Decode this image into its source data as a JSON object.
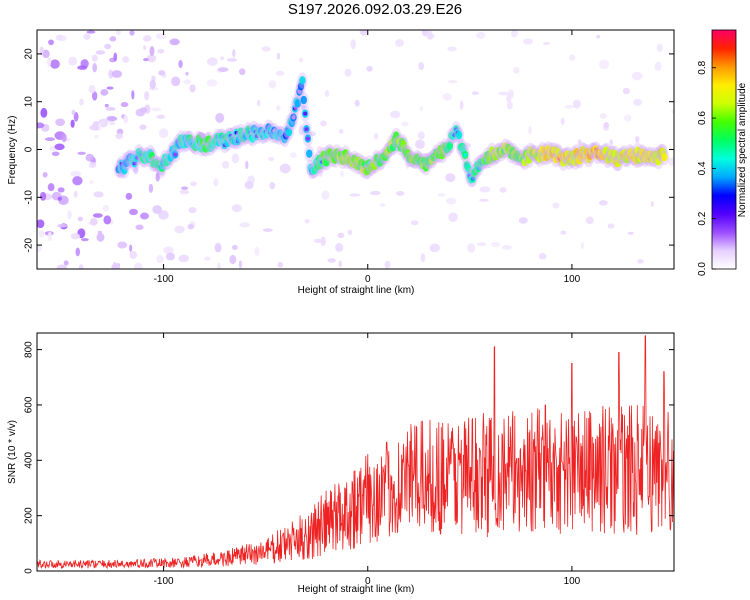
{
  "title": "S197.2026.092.03.29.E26",
  "chart_data": [
    {
      "type": "heatmap",
      "xlabel": "Height of straight line (km)",
      "ylabel": "Frequency (Hz)",
      "xlim": [
        -162,
        150
      ],
      "ylim": [
        -25,
        25
      ],
      "xticks": [
        -100,
        0,
        100
      ],
      "yticks": [
        -20,
        -10,
        0,
        10,
        20
      ],
      "colorbar": {
        "label": "Normalized spectral amplitude",
        "range": [
          0,
          0.95
        ],
        "ticks": [
          0.0,
          0.2,
          0.4,
          0.6,
          0.8
        ],
        "colors": [
          "#ffffff",
          "#e6d0ff",
          "#9b4dff",
          "#5200ff",
          "#0000ff",
          "#00aaff",
          "#00ffdd",
          "#00ff60",
          "#44ff00",
          "#ccff00",
          "#ffee00",
          "#ff9900",
          "#ff2200",
          "#ff0066"
        ]
      },
      "ridge": [
        {
          "x": -122,
          "f": -4,
          "a": 0.15
        },
        {
          "x": -110,
          "f": -1,
          "a": 0.35
        },
        {
          "x": -100,
          "f": -3,
          "a": 0.3
        },
        {
          "x": -90,
          "f": 2,
          "a": 0.25
        },
        {
          "x": -80,
          "f": 1,
          "a": 0.45
        },
        {
          "x": -70,
          "f": 2,
          "a": 0.3
        },
        {
          "x": -60,
          "f": 3,
          "a": 0.3
        },
        {
          "x": -50,
          "f": 4,
          "a": 0.2
        },
        {
          "x": -40,
          "f": 2,
          "a": 0.15
        },
        {
          "x": -32,
          "f": 14,
          "a": 0.2
        },
        {
          "x": -28,
          "f": -4,
          "a": 0.2
        },
        {
          "x": -18,
          "f": -1,
          "a": 0.55
        },
        {
          "x": -8,
          "f": -2,
          "a": 0.6
        },
        {
          "x": 0,
          "f": -4,
          "a": 0.55
        },
        {
          "x": 8,
          "f": -1,
          "a": 0.5
        },
        {
          "x": 14,
          "f": 2,
          "a": 0.55
        },
        {
          "x": 22,
          "f": -2,
          "a": 0.5
        },
        {
          "x": 30,
          "f": -3,
          "a": 0.55
        },
        {
          "x": 38,
          "f": 0,
          "a": 0.5
        },
        {
          "x": 44,
          "f": 4,
          "a": 0.35
        },
        {
          "x": 50,
          "f": -6,
          "a": 0.3
        },
        {
          "x": 58,
          "f": -2,
          "a": 0.5
        },
        {
          "x": 66,
          "f": 0,
          "a": 0.6
        },
        {
          "x": 74,
          "f": -2,
          "a": 0.55
        },
        {
          "x": 82,
          "f": -1,
          "a": 0.7
        },
        {
          "x": 90,
          "f": -1,
          "a": 0.85
        },
        {
          "x": 98,
          "f": -2,
          "a": 0.75
        },
        {
          "x": 106,
          "f": -1,
          "a": 0.8
        },
        {
          "x": 114,
          "f": -1,
          "a": 0.85
        },
        {
          "x": 122,
          "f": -2,
          "a": 0.7
        },
        {
          "x": 130,
          "f": -1,
          "a": 0.75
        },
        {
          "x": 138,
          "f": -2,
          "a": 0.7
        },
        {
          "x": 146,
          "f": -1,
          "a": 0.8
        }
      ]
    },
    {
      "type": "line",
      "xlabel": "Height of straight line (km)",
      "ylabel": "SNR (10 * v/v)",
      "xlim": [
        -162,
        150
      ],
      "ylim": [
        0,
        860
      ],
      "xticks": [
        -100,
        0,
        100
      ],
      "yticks": [
        0,
        200,
        400,
        600,
        800
      ],
      "color": "#ee2222",
      "envelope": [
        {
          "x": -162,
          "mean": 25,
          "amp": 15
        },
        {
          "x": -120,
          "mean": 25,
          "amp": 15
        },
        {
          "x": -90,
          "mean": 30,
          "amp": 20
        },
        {
          "x": -70,
          "mean": 45,
          "amp": 30
        },
        {
          "x": -50,
          "mean": 70,
          "amp": 50
        },
        {
          "x": -35,
          "mean": 110,
          "amp": 80
        },
        {
          "x": -25,
          "mean": 150,
          "amp": 110
        },
        {
          "x": -10,
          "mean": 220,
          "amp": 150
        },
        {
          "x": 0,
          "mean": 260,
          "amp": 170
        },
        {
          "x": 10,
          "mean": 290,
          "amp": 180
        },
        {
          "x": 20,
          "mean": 330,
          "amp": 200
        },
        {
          "x": 40,
          "mean": 350,
          "amp": 220
        },
        {
          "x": 60,
          "mean": 350,
          "amp": 230
        },
        {
          "x": 80,
          "mean": 360,
          "amp": 230
        },
        {
          "x": 100,
          "mean": 360,
          "amp": 230
        },
        {
          "x": 120,
          "mean": 370,
          "amp": 240
        },
        {
          "x": 150,
          "mean": 360,
          "amp": 230
        }
      ],
      "peaks": [
        {
          "x": 20,
          "y": 380
        },
        {
          "x": 62,
          "y": 810
        },
        {
          "x": 87,
          "y": 600
        },
        {
          "x": 100,
          "y": 750
        },
        {
          "x": 123,
          "y": 790
        },
        {
          "x": 136,
          "y": 850
        },
        {
          "x": 145,
          "y": 720
        }
      ]
    }
  ]
}
